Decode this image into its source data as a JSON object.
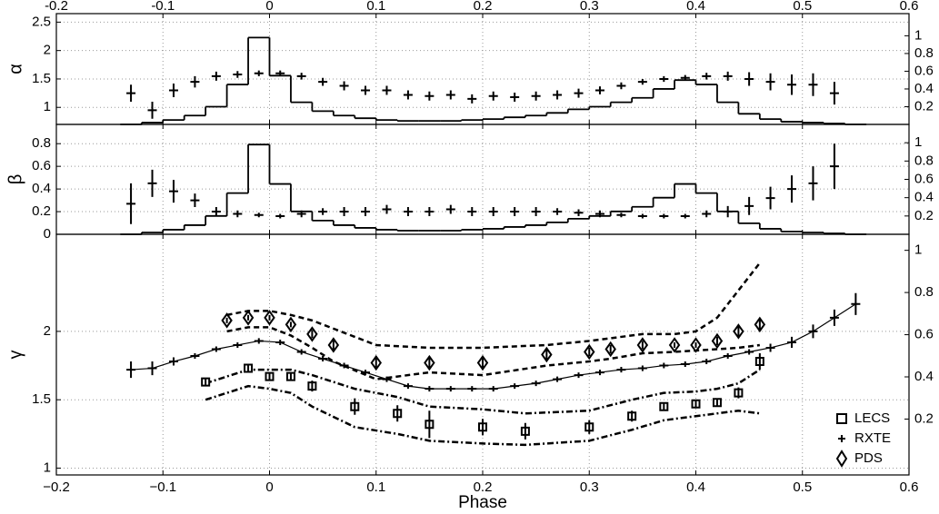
{
  "chart_data": [
    {
      "type": "errorbar",
      "ylabel": "α",
      "xlim": [
        -0.2,
        0.6
      ],
      "xticks": [
        -0.2,
        -0.1,
        0,
        0.1,
        0.2,
        0.3,
        0.4,
        0.5,
        0.6
      ],
      "xticks_position": "top",
      "ylim": [
        0.7,
        2.65
      ],
      "yticks": [
        1,
        1.5,
        2,
        2.5
      ],
      "y2lim": [
        0,
        1.25
      ],
      "y2ticks": [
        0.2,
        0.4,
        0.6,
        0.8,
        1
      ],
      "grid": true,
      "series": [
        {
          "marker": "cross",
          "color": "#000",
          "x": [
            -0.13,
            -0.11,
            -0.09,
            -0.07,
            -0.05,
            -0.03,
            -0.01,
            0.01,
            0.03,
            0.05,
            0.07,
            0.09,
            0.11,
            0.13,
            0.15,
            0.17,
            0.19,
            0.21,
            0.23,
            0.25,
            0.27,
            0.29,
            0.31,
            0.33,
            0.35,
            0.37,
            0.39,
            0.41,
            0.43,
            0.45,
            0.47,
            0.49,
            0.51,
            0.53
          ],
          "values": [
            1.25,
            0.95,
            1.3,
            1.45,
            1.55,
            1.58,
            1.6,
            1.6,
            1.55,
            1.45,
            1.38,
            1.3,
            1.3,
            1.22,
            1.2,
            1.22,
            1.15,
            1.2,
            1.18,
            1.2,
            1.22,
            1.25,
            1.3,
            1.38,
            1.45,
            1.5,
            1.52,
            1.55,
            1.55,
            1.5,
            1.45,
            1.4,
            1.4,
            1.25
          ],
          "errors": [
            0.15,
            0.15,
            0.12,
            0.1,
            0.08,
            0.06,
            0.05,
            0.05,
            0.06,
            0.07,
            0.08,
            0.08,
            0.08,
            0.08,
            0.08,
            0.08,
            0.08,
            0.08,
            0.08,
            0.08,
            0.08,
            0.08,
            0.07,
            0.06,
            0.05,
            0.05,
            0.05,
            0.06,
            0.08,
            0.12,
            0.15,
            0.18,
            0.2,
            0.2
          ]
        },
        {
          "marker": "step",
          "axis": "y2",
          "color": "#000",
          "x": [
            -0.13,
            -0.11,
            -0.09,
            -0.07,
            -0.05,
            -0.03,
            -0.01,
            0.01,
            0.03,
            0.05,
            0.07,
            0.09,
            0.11,
            0.13,
            0.15,
            0.17,
            0.19,
            0.21,
            0.23,
            0.25,
            0.27,
            0.29,
            0.31,
            0.33,
            0.35,
            0.37,
            0.39,
            0.41,
            0.43,
            0.45,
            0.47,
            0.49,
            0.51,
            0.53,
            0.55
          ],
          "values": [
            0,
            0.02,
            0.05,
            0.1,
            0.2,
            0.45,
            0.98,
            0.55,
            0.25,
            0.15,
            0.1,
            0.07,
            0.05,
            0.04,
            0.04,
            0.04,
            0.05,
            0.06,
            0.08,
            0.1,
            0.13,
            0.17,
            0.2,
            0.25,
            0.3,
            0.4,
            0.5,
            0.45,
            0.25,
            0.12,
            0.06,
            0.03,
            0.02,
            0.01,
            0
          ]
        }
      ]
    },
    {
      "type": "errorbar",
      "ylabel": "β",
      "xlim": [
        -0.2,
        0.6
      ],
      "xticks": [
        -0.2,
        -0.1,
        0,
        0.1,
        0.2,
        0.3,
        0.4,
        0.5,
        0.6
      ],
      "ylim": [
        0,
        0.97
      ],
      "yticks": [
        0,
        0.2,
        0.4,
        0.6,
        0.8
      ],
      "y2lim": [
        0,
        1.2
      ],
      "y2ticks": [
        0.2,
        0.4,
        0.6,
        0.8,
        1
      ],
      "grid": true,
      "series": [
        {
          "marker": "cross",
          "color": "#000",
          "x": [
            -0.13,
            -0.11,
            -0.09,
            -0.07,
            -0.05,
            -0.03,
            -0.01,
            0.01,
            0.03,
            0.05,
            0.07,
            0.09,
            0.11,
            0.13,
            0.15,
            0.17,
            0.19,
            0.21,
            0.23,
            0.25,
            0.27,
            0.29,
            0.31,
            0.33,
            0.35,
            0.37,
            0.39,
            0.41,
            0.43,
            0.45,
            0.47,
            0.49,
            0.51,
            0.53
          ],
          "values": [
            0.27,
            0.45,
            0.38,
            0.3,
            0.2,
            0.18,
            0.17,
            0.16,
            0.18,
            0.2,
            0.2,
            0.2,
            0.22,
            0.2,
            0.2,
            0.22,
            0.2,
            0.2,
            0.2,
            0.2,
            0.2,
            0.19,
            0.18,
            0.17,
            0.16,
            0.16,
            0.16,
            0.18,
            0.2,
            0.25,
            0.32,
            0.4,
            0.45,
            0.6
          ],
          "errors": [
            0.18,
            0.12,
            0.1,
            0.06,
            0.04,
            0.03,
            0.02,
            0.02,
            0.03,
            0.03,
            0.04,
            0.04,
            0.04,
            0.04,
            0.04,
            0.04,
            0.04,
            0.04,
            0.04,
            0.04,
            0.03,
            0.03,
            0.03,
            0.02,
            0.02,
            0.02,
            0.02,
            0.03,
            0.05,
            0.08,
            0.1,
            0.12,
            0.15,
            0.2
          ]
        },
        {
          "marker": "step",
          "axis": "y2",
          "color": "#000",
          "x": [
            -0.13,
            -0.11,
            -0.09,
            -0.07,
            -0.05,
            -0.03,
            -0.01,
            0.01,
            0.03,
            0.05,
            0.07,
            0.09,
            0.11,
            0.13,
            0.15,
            0.17,
            0.19,
            0.21,
            0.23,
            0.25,
            0.27,
            0.29,
            0.31,
            0.33,
            0.35,
            0.37,
            0.39,
            0.41,
            0.43,
            0.45,
            0.47,
            0.49,
            0.51,
            0.53,
            0.55
          ],
          "values": [
            0,
            0.02,
            0.05,
            0.1,
            0.2,
            0.45,
            0.98,
            0.55,
            0.25,
            0.15,
            0.1,
            0.07,
            0.05,
            0.04,
            0.04,
            0.04,
            0.05,
            0.06,
            0.08,
            0.1,
            0.13,
            0.17,
            0.2,
            0.25,
            0.3,
            0.4,
            0.55,
            0.45,
            0.25,
            0.12,
            0.06,
            0.03,
            0.02,
            0.01,
            0
          ]
        }
      ]
    },
    {
      "type": "errorbar",
      "ylabel": "γ",
      "xlabel": "Phase",
      "xlim": [
        -0.2,
        0.6
      ],
      "xticks": [
        {
          "value": -0.2,
          "label": "−0.2"
        },
        {
          "value": -0.1,
          "label": "−0.1"
        },
        0,
        0.1,
        0.2,
        0.3,
        0.4,
        0.5,
        0.6
      ],
      "ylim": [
        0.95,
        2.71
      ],
      "yticks": [
        1,
        1.5,
        2
      ],
      "y2lim": [
        -0.065,
        1.076
      ],
      "y2ticks": [
        0.2,
        0.4,
        0.6,
        0.8,
        1
      ],
      "grid": true,
      "legend": "lower right",
      "series": [
        {
          "name": "LECS",
          "marker": "square",
          "color": "#000",
          "dash": "dashdot",
          "x": [
            -0.06,
            -0.02,
            0,
            0.02,
            0.04,
            0.08,
            0.12,
            0.15,
            0.2,
            0.24,
            0.3,
            0.34,
            0.37,
            0.4,
            0.42,
            0.44,
            0.46
          ],
          "values": [
            1.63,
            1.73,
            1.67,
            1.67,
            1.6,
            1.45,
            1.4,
            1.32,
            1.3,
            1.27,
            1.3,
            1.38,
            1.45,
            1.47,
            1.48,
            1.55,
            1.78
          ],
          "errors": [
            0.03,
            0.03,
            0.03,
            0.03,
            0.04,
            0.06,
            0.06,
            0.1,
            0.06,
            0.06,
            0.05,
            0.04,
            0.03,
            0.03,
            0.03,
            0.04,
            0.06
          ],
          "lower": [
            1.5,
            1.6,
            1.58,
            1.55,
            1.45,
            1.3,
            1.25,
            1.2,
            1.18,
            1.17,
            1.2,
            1.28,
            1.35,
            1.38,
            1.4,
            1.42,
            1.4
          ],
          "upper": [
            1.62,
            1.72,
            1.72,
            1.72,
            1.68,
            1.58,
            1.52,
            1.45,
            1.43,
            1.4,
            1.42,
            1.5,
            1.55,
            1.56,
            1.58,
            1.62,
            1.72
          ]
        },
        {
          "name": "RXTE",
          "marker": "cross",
          "line": true,
          "color": "#000",
          "x": [
            -0.13,
            -0.11,
            -0.09,
            -0.07,
            -0.05,
            -0.03,
            -0.01,
            0.01,
            0.03,
            0.05,
            0.07,
            0.09,
            0.11,
            0.13,
            0.15,
            0.17,
            0.19,
            0.21,
            0.23,
            0.25,
            0.27,
            0.29,
            0.31,
            0.33,
            0.35,
            0.37,
            0.39,
            0.41,
            0.43,
            0.45,
            0.47,
            0.49,
            0.51,
            0.53,
            0.55
          ],
          "values": [
            1.72,
            1.73,
            1.78,
            1.82,
            1.87,
            1.9,
            1.93,
            1.92,
            1.85,
            1.8,
            1.75,
            1.7,
            1.65,
            1.6,
            1.58,
            1.58,
            1.58,
            1.58,
            1.6,
            1.62,
            1.65,
            1.68,
            1.7,
            1.72,
            1.73,
            1.75,
            1.76,
            1.78,
            1.82,
            1.85,
            1.88,
            1.92,
            2.0,
            2.1,
            2.2
          ],
          "errors": [
            0.06,
            0.05,
            0.03,
            0.02,
            0.02,
            0.02,
            0.02,
            0.02,
            0.02,
            0.02,
            0.02,
            0.02,
            0.02,
            0.02,
            0.02,
            0.02,
            0.02,
            0.02,
            0.02,
            0.02,
            0.02,
            0.02,
            0.02,
            0.02,
            0.02,
            0.02,
            0.02,
            0.02,
            0.02,
            0.02,
            0.03,
            0.04,
            0.05,
            0.06,
            0.08
          ]
        },
        {
          "name": "PDS",
          "marker": "diamond",
          "color": "#000",
          "dash": "dashed",
          "x": [
            -0.04,
            -0.02,
            0,
            0.02,
            0.04,
            0.06,
            0.1,
            0.15,
            0.2,
            0.26,
            0.3,
            0.32,
            0.35,
            0.38,
            0.4,
            0.42,
            0.44,
            0.46
          ],
          "values": [
            2.08,
            2.1,
            2.1,
            2.05,
            1.98,
            1.9,
            1.77,
            1.77,
            1.77,
            1.83,
            1.85,
            1.87,
            1.9,
            1.9,
            1.9,
            1.93,
            2.0,
            2.05
          ],
          "errors": [
            0.02,
            0.02,
            0.02,
            0.02,
            0.03,
            0.04,
            0.05,
            0.05,
            0.05,
            0.04,
            0.03,
            0.03,
            0.03,
            0.02,
            0.02,
            0.03,
            0.04,
            0.05
          ],
          "lower": [
            2.0,
            2.03,
            2.03,
            1.97,
            1.88,
            1.78,
            1.65,
            1.7,
            1.68,
            1.75,
            1.78,
            1.8,
            1.84,
            1.85,
            1.86,
            1.87,
            1.88,
            1.9
          ],
          "upper": [
            2.12,
            2.15,
            2.15,
            2.12,
            2.08,
            2.02,
            1.9,
            1.88,
            1.88,
            1.9,
            1.93,
            1.95,
            1.98,
            1.98,
            2.0,
            2.1,
            2.3,
            2.5
          ]
        }
      ]
    }
  ]
}
